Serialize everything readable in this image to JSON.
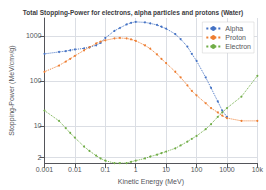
{
  "chart_data": {
    "type": "line",
    "title": "Total Stopping-Power for electrons, alpha particles and protons (Water)",
    "xlabel": "Kinetic Energy (MeV)",
    "ylabel": "Stopping-Power (MeV/cm²/g)",
    "log": true,
    "grid": true,
    "legend": "upper right",
    "marker": "point",
    "line_style": "dotted",
    "xlim": [
      0.001,
      10000
    ],
    "ylim": [
      1.5,
      2500
    ],
    "xticks": [
      0.001,
      0.01,
      0.1,
      1,
      10,
      100,
      1000,
      {
        "value": 10000,
        "label": "10k"
      }
    ],
    "yticks": [
      2,
      10,
      100,
      1000
    ],
    "series": [
      {
        "name": "Alpha",
        "color": "#4472c4",
        "x": [
          0.001,
          0.003,
          0.005,
          0.007,
          0.01,
          0.02,
          0.03,
          0.05,
          0.07,
          0.1,
          0.2,
          0.3,
          0.5,
          0.7,
          1,
          2,
          3,
          5,
          7,
          10,
          20,
          30,
          50,
          70,
          100,
          200,
          300,
          500,
          700,
          1000
        ],
        "values": [
          400,
          440,
          460,
          480,
          500,
          530,
          560,
          620,
          700,
          900,
          1300,
          1500,
          1800,
          1950,
          2050,
          2000,
          1900,
          1750,
          1600,
          1450,
          1100,
          850,
          580,
          400,
          280,
          120,
          70,
          35,
          22,
          16
        ]
      },
      {
        "name": "Proton",
        "color": "#ed7d31",
        "x": [
          0.001,
          0.003,
          0.005,
          0.007,
          0.01,
          0.02,
          0.03,
          0.05,
          0.07,
          0.1,
          0.2,
          0.3,
          0.5,
          0.7,
          1,
          2,
          3,
          5,
          7,
          10,
          20,
          30,
          50,
          70,
          100,
          200,
          300,
          500,
          700,
          1000,
          3000,
          10000
        ],
        "values": [
          160,
          220,
          270,
          310,
          360,
          480,
          560,
          680,
          750,
          800,
          880,
          900,
          880,
          840,
          780,
          620,
          520,
          390,
          310,
          250,
          160,
          120,
          80,
          60,
          48,
          32,
          25,
          20,
          17,
          15,
          13,
          13
        ]
      },
      {
        "name": "Electron",
        "color": "#70ad47",
        "x": [
          0.001,
          0.003,
          0.005,
          0.007,
          0.01,
          0.02,
          0.03,
          0.05,
          0.07,
          0.1,
          0.2,
          0.3,
          0.5,
          0.7,
          1,
          2,
          3,
          5,
          7,
          10,
          20,
          30,
          50,
          70,
          100,
          200,
          300,
          500,
          700,
          1000,
          3000,
          10000
        ],
        "values": [
          22,
          13,
          9,
          7,
          5.5,
          3.5,
          2.8,
          2.2,
          1.9,
          1.7,
          1.5,
          1.5,
          1.5,
          1.6,
          1.7,
          1.9,
          2.1,
          2.3,
          2.5,
          2.7,
          3.2,
          3.7,
          4.5,
          5.2,
          6.0,
          8.5,
          11,
          16,
          20,
          25,
          45,
          130
        ]
      }
    ]
  }
}
